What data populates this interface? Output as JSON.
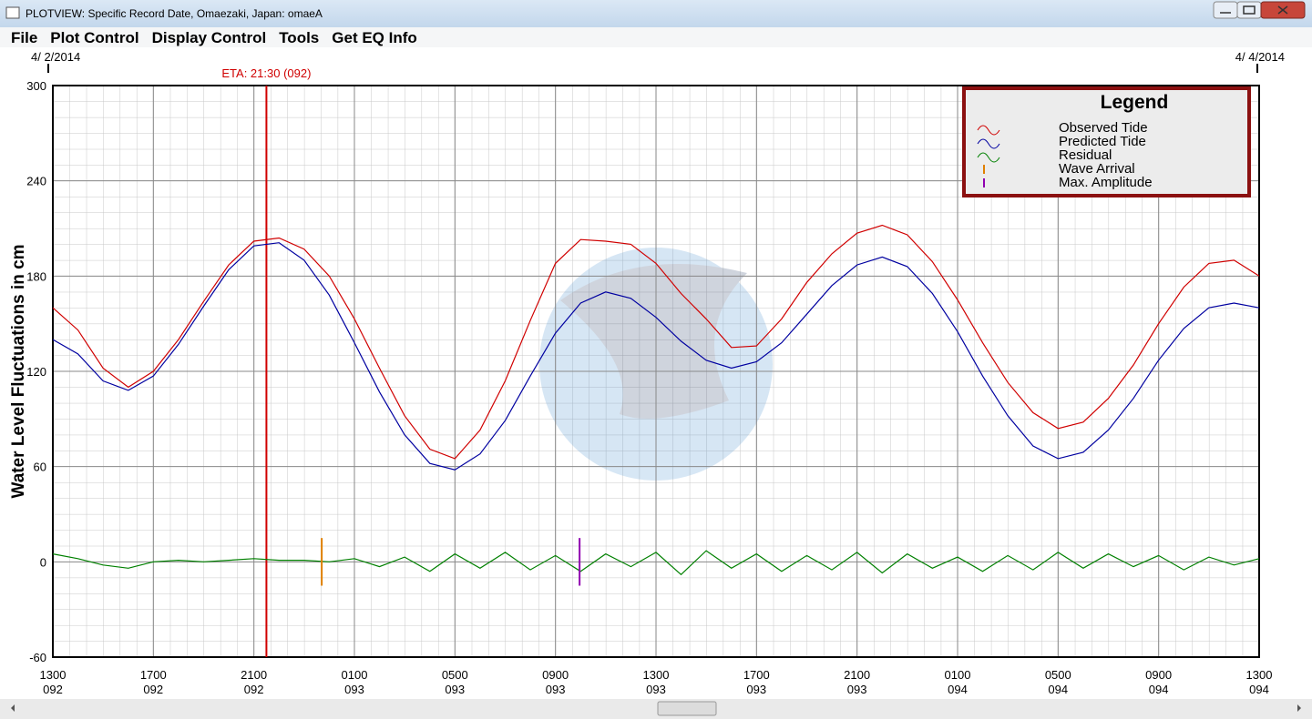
{
  "window": {
    "title": "PLOTVIEW: Specific Record Date, Omaezaki, Japan: omaeA",
    "menu": [
      "File",
      "Plot Control",
      "Display Control",
      "Tools",
      "Get EQ Info"
    ]
  },
  "chart_data": {
    "type": "line",
    "start_date_label": "4/ 2/2014",
    "end_date_label": "4/ 4/2014",
    "ylabel": "Water Level Fluctuations in cm",
    "eta": {
      "label": "ETA: 21:30 (092)",
      "x": 92.8958,
      "color": "#d00000"
    },
    "legend_title": "Legend",
    "x": [
      92.5417,
      92.5833,
      92.625,
      92.6667,
      92.7083,
      92.75,
      92.7917,
      92.8333,
      92.875,
      92.9167,
      92.9583,
      93,
      93.0417,
      93.0833,
      93.125,
      93.1667,
      93.2083,
      93.25,
      93.2917,
      93.3333,
      93.375,
      93.4167,
      93.4583,
      93.5,
      93.5417,
      93.5833,
      93.625,
      93.6667,
      93.7083,
      93.75,
      93.7917,
      93.8333,
      93.875,
      93.9167,
      93.9583,
      94,
      94.0417,
      94.0833,
      94.125,
      94.1667,
      94.2083,
      94.25,
      94.2917,
      94.3333,
      94.375,
      94.4167,
      94.4583,
      94.5,
      94.5417
    ],
    "series": [
      {
        "name": "Observed Tide",
        "color": "#d00000",
        "values": [
          160,
          146,
          122,
          110,
          120,
          140,
          164,
          187,
          202,
          204,
          197,
          180,
          153,
          122,
          92,
          71,
          65,
          83,
          114,
          152,
          188,
          203,
          202,
          200,
          188,
          169,
          153,
          135,
          136,
          153,
          176,
          194,
          207,
          212,
          206,
          189,
          165,
          138,
          113,
          94,
          84,
          88,
          103,
          124,
          150,
          173,
          188,
          190,
          180
        ]
      },
      {
        "name": "Predicted Tide",
        "color": "#0000a0",
        "values": [
          140,
          131,
          114,
          108,
          117,
          137,
          161,
          184,
          199,
          201,
          190,
          168,
          138,
          107,
          80,
          62,
          58,
          68,
          89,
          117,
          144,
          163,
          170,
          166,
          154,
          139,
          127,
          122,
          126,
          138,
          156,
          174,
          187,
          192,
          186,
          169,
          145,
          117,
          92,
          73,
          65,
          69,
          83,
          103,
          127,
          147,
          160,
          163,
          160
        ]
      },
      {
        "name": "Residual",
        "color": "#008000",
        "values": [
          5,
          2,
          -2,
          -4,
          0,
          1,
          0,
          1,
          2,
          1,
          1,
          0,
          2,
          -3,
          3,
          -6,
          5,
          -4,
          6,
          -5,
          4,
          -6,
          5,
          -3,
          6,
          -8,
          7,
          -4,
          5,
          -6,
          4,
          -5,
          6,
          -7,
          5,
          -4,
          3,
          -6,
          4,
          -5,
          6,
          -4,
          5,
          -3,
          4,
          -5,
          3,
          -2,
          2
        ]
      }
    ],
    "markers": [
      {
        "name": "Wave Arrival",
        "color": "#e08000",
        "x": 92.9875,
        "y": [
          -15,
          15
        ]
      },
      {
        "name": "Max. Amplitude",
        "color": "#9000b0",
        "x": 93.415,
        "y": [
          -15,
          15
        ]
      }
    ],
    "xlim": [
      92.5417,
      94.5417
    ],
    "xticks": [
      {
        "value": 92.5417,
        "label": "1300\n092"
      },
      {
        "value": 92.7083,
        "label": "1700\n092"
      },
      {
        "value": 92.875,
        "label": "2100\n092"
      },
      {
        "value": 93.0417,
        "label": "0100\n093"
      },
      {
        "value": 93.2083,
        "label": "0500\n093"
      },
      {
        "value": 93.375,
        "label": "0900\n093"
      },
      {
        "value": 93.5417,
        "label": "1300\n093"
      },
      {
        "value": 93.7083,
        "label": "1700\n093"
      },
      {
        "value": 93.875,
        "label": "2100\n093"
      },
      {
        "value": 94.0417,
        "label": "0100\n094"
      },
      {
        "value": 94.2083,
        "label": "0500\n094"
      },
      {
        "value": 94.375,
        "label": "0900\n094"
      },
      {
        "value": 94.5417,
        "label": "1300\n094"
      }
    ],
    "ylim": [
      -60,
      300
    ],
    "yticks": [
      -60,
      0,
      60,
      120,
      180,
      240,
      300
    ],
    "grid": true
  }
}
